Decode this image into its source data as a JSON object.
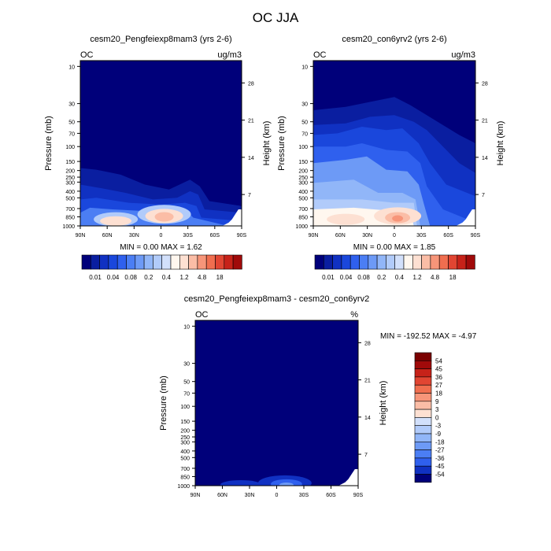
{
  "main_title": "OC JJA",
  "palette_levels": [
    "#00007a",
    "#0a1ea0",
    "#1031c2",
    "#1a47dc",
    "#2f60ee",
    "#4b7ef4",
    "#6d9af6",
    "#91b6f8",
    "#b1cbfa",
    "#d2e0fb",
    "#fff7ef",
    "#fde0d2",
    "#fbbda6",
    "#f79579",
    "#f06e4f",
    "#e14532",
    "#c72219",
    "#a00a0a",
    "#7a0000"
  ],
  "chart_data": [
    {
      "type": "contour",
      "title": "cesm20_Pengfeiexp8mam3 (yrs 2-6)",
      "left_string": "OC",
      "right_string": "ug/m3",
      "xlabel": "",
      "ylabel": "Pressure (mb)",
      "y2label": "Height (km)",
      "x_ticks": [
        "90N",
        "60N",
        "30N",
        "0",
        "30S",
        "60S",
        "90S"
      ],
      "y_ticks": [
        "10",
        "30",
        "50",
        "70",
        "100",
        "150",
        "200",
        "250",
        "300",
        "400",
        "500",
        "700",
        "850",
        "1000"
      ],
      "y2_ticks": [
        "28",
        "21",
        "14",
        "7"
      ],
      "min_max_text": "MIN =   0.00   MAX =   1.62",
      "colorbar_labels": [
        "0.01",
        "0.04",
        "0.08",
        "0.2",
        "0.4",
        "1.2",
        "4.8",
        "18"
      ]
    },
    {
      "type": "contour",
      "title": "cesm20_con6yrv2 (yrs 2-6)",
      "left_string": "OC",
      "right_string": "ug/m3",
      "xlabel": "",
      "ylabel": "Pressure (mb)",
      "y2label": "Height (km)",
      "x_ticks": [
        "90N",
        "60N",
        "30N",
        "0",
        "30S",
        "60S",
        "90S"
      ],
      "y_ticks": [
        "10",
        "30",
        "50",
        "70",
        "100",
        "150",
        "200",
        "250",
        "300",
        "400",
        "500",
        "700",
        "850",
        "1000"
      ],
      "y2_ticks": [
        "28",
        "21",
        "14",
        "7"
      ],
      "min_max_text": "MIN =   0.00   MAX =   1.85",
      "colorbar_labels": [
        "0.01",
        "0.04",
        "0.08",
        "0.2",
        "0.4",
        "1.2",
        "4.8",
        "18"
      ]
    },
    {
      "type": "contour",
      "title": "cesm20_Pengfeiexp8mam3 - cesm20_con6yrv2",
      "left_string": "OC",
      "right_string": "%",
      "xlabel": "",
      "ylabel": "Pressure (mb)",
      "y2label": "Height (km)",
      "x_ticks": [
        "90N",
        "60N",
        "30N",
        "0",
        "30S",
        "60S",
        "90S"
      ],
      "y_ticks": [
        "10",
        "30",
        "50",
        "70",
        "100",
        "150",
        "200",
        "250",
        "300",
        "400",
        "500",
        "700",
        "850",
        "1000"
      ],
      "y2_ticks": [
        "28",
        "21",
        "14",
        "7"
      ],
      "min_max_text": "MIN = -192.52  MAX =  -4.97",
      "colorbar_labels": [
        "54",
        "45",
        "36",
        "27",
        "18",
        "9",
        "3",
        "0",
        "-3",
        "-9",
        "-18",
        "-27",
        "-36",
        "-45",
        "-54"
      ]
    }
  ]
}
